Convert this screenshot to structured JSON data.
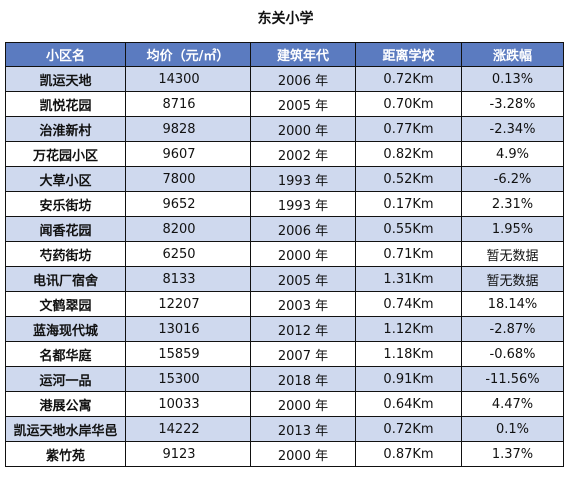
{
  "title": "东关小学",
  "headers": [
    "小区名",
    "均价（元/㎡）",
    "建筑年代",
    "距离学校",
    "涨跌幅"
  ],
  "rows": [
    {
      "name": "凯运天地",
      "price": "14300",
      "year": "2006 年",
      "distance": "0.72Km",
      "change": "0.13%"
    },
    {
      "name": "凯悦花园",
      "price": "8716",
      "year": "2005 年",
      "distance": "0.70Km",
      "change": "-3.28%"
    },
    {
      "name": "治淮新村",
      "price": "9828",
      "year": "2000 年",
      "distance": "0.77Km",
      "change": "-2.34%"
    },
    {
      "name": "万花园小区",
      "price": "9607",
      "year": "2002 年",
      "distance": "0.82Km",
      "change": "4.9%"
    },
    {
      "name": "大草小区",
      "price": "7800",
      "year": "1993 年",
      "distance": "0.52Km",
      "change": "-6.2%"
    },
    {
      "name": "安乐街坊",
      "price": "9652",
      "year": "1993 年",
      "distance": "0.17Km",
      "change": "2.31%"
    },
    {
      "name": "闻香花园",
      "price": "8200",
      "year": "2006 年",
      "distance": "0.55Km",
      "change": "1.95%"
    },
    {
      "name": "芍药街坊",
      "price": "6250",
      "year": "2000 年",
      "distance": "0.71Km",
      "change": "暂无数据"
    },
    {
      "name": "电讯厂宿舍",
      "price": "8133",
      "year": "2005 年",
      "distance": "1.31Km",
      "change": "暂无数据"
    },
    {
      "name": "文鹤翠园",
      "price": "12207",
      "year": "2003 年",
      "distance": "0.74Km",
      "change": "18.14%"
    },
    {
      "name": "蓝海现代城",
      "price": "13016",
      "year": "2012 年",
      "distance": "1.12Km",
      "change": "-2.87%"
    },
    {
      "name": "名都华庭",
      "price": "15859",
      "year": "2007 年",
      "distance": "1.18Km",
      "change": "-0.68%"
    },
    {
      "name": "运河一品",
      "price": "15300",
      "year": "2018 年",
      "distance": "0.91Km",
      "change": "-11.56%"
    },
    {
      "name": "港展公寓",
      "price": "10033",
      "year": "2000 年",
      "distance": "0.64Km",
      "change": "4.47%"
    },
    {
      "name": "凯运天地水岸华邑",
      "price": "14222",
      "year": "2013 年",
      "distance": "0.72Km",
      "change": "0.1%"
    },
    {
      "name": "紫竹苑",
      "price": "9123",
      "year": "2000 年",
      "distance": "0.87Km",
      "change": "1.37%"
    }
  ]
}
